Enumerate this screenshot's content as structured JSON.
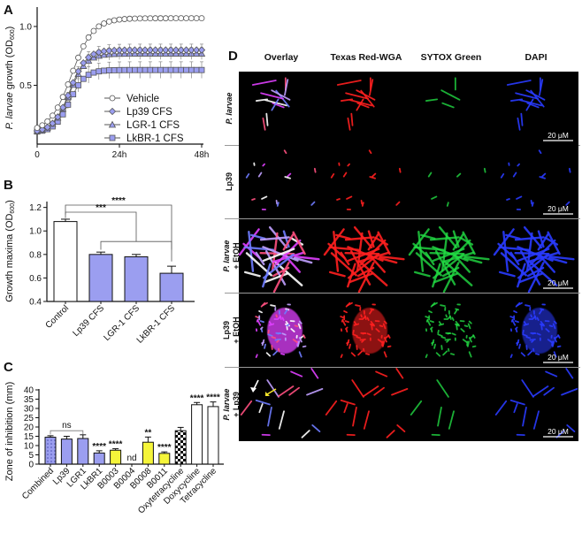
{
  "colors": {
    "purple": "#9b9ef0",
    "purple_dark": "#5d62c8",
    "yellow": "#f5f53a",
    "white": "#ffffff",
    "black": "#000000",
    "red": "#ff2020",
    "green": "#22dd44",
    "blue": "#2a3bff",
    "magenta": "#e040ff",
    "arrow_white": "#ffffff",
    "arrow_yellow": "#f5e52a"
  },
  "chart_data": [
    {
      "panel": "A",
      "type": "line",
      "ylabel": "P. larvae growth (OD600)",
      "ylabel_main": "P. larvae",
      "ylabel_rest": " growth (OD",
      "ylabel_sub": "600",
      "ylabel_end": ")",
      "xlim": [
        0,
        48
      ],
      "ylim": [
        0.0,
        1.15
      ],
      "xticks": [
        {
          "value": 0,
          "label": "0"
        },
        {
          "value": 24,
          "label": "24h"
        },
        {
          "value": 48,
          "label": "48h"
        }
      ],
      "yticks": [
        {
          "value": 0.5,
          "label": "0.5"
        },
        {
          "value": 1.0,
          "label": "1.0"
        }
      ],
      "series": [
        {
          "name": "Vehicle",
          "marker": "circle",
          "plateau": 1.07,
          "mid": 10,
          "k": 0.32,
          "err": 0.02
        },
        {
          "name": "Lp39 CFS",
          "marker": "diamond",
          "plateau": 0.8,
          "mid": 9.5,
          "k": 0.42,
          "err": 0.05
        },
        {
          "name": "LGR-1 CFS",
          "marker": "triangle",
          "plateau": 0.77,
          "mid": 9.5,
          "k": 0.42,
          "err": 0.05
        },
        {
          "name": "LkBR-1 CFS",
          "marker": "square",
          "plateau": 0.63,
          "mid": 9.5,
          "k": 0.45,
          "err": 0.07
        }
      ],
      "start_value": 0.1,
      "legend_position": "bottom-right"
    },
    {
      "panel": "B",
      "type": "bar",
      "ylabel_main": "Growth maxima (OD",
      "ylabel_sub": "600",
      "ylabel_end": ")",
      "ylim": [
        0.4,
        1.25
      ],
      "yticks": [
        0.4,
        0.6,
        0.8,
        1.0,
        1.2
      ],
      "ytick_labels": [
        "0.4",
        "0.6",
        "0.8",
        "1.0",
        "1.2"
      ],
      "categories": [
        "Control",
        "Lp39 CFS",
        "LGR-1 CFS",
        "LkBR-1 CFS"
      ],
      "values": [
        1.08,
        0.8,
        0.78,
        0.64
      ],
      "errors": [
        0.02,
        0.02,
        0.02,
        0.06
      ],
      "fills": [
        "white",
        "purple",
        "purple",
        "purple"
      ],
      "significance": [
        {
          "label": "***",
          "from": 0,
          "to_group": [
            1,
            3
          ],
          "level": 1.16
        },
        {
          "label": "****",
          "from": 0,
          "to": 3,
          "level": 1.22
        }
      ]
    },
    {
      "panel": "C",
      "type": "bar",
      "ylabel": "Zone of inhibition (mm)",
      "ylim": [
        0,
        40
      ],
      "yticks": [
        0,
        5,
        10,
        15,
        20,
        25,
        30,
        35,
        40
      ],
      "ytick_labels": [
        "0",
        "5",
        "10",
        "15",
        "20",
        "25",
        "30",
        "35",
        "40"
      ],
      "categories": [
        "Combined",
        "Lp39",
        "LGR1",
        "LkBR1",
        "B0003",
        "B0004",
        "B0008",
        "B0011",
        "Oxytetracycline",
        "Doxycycline",
        "Tetracycline"
      ],
      "values": [
        14.5,
        13.5,
        13.8,
        6.0,
        7.5,
        0,
        11.8,
        5.8,
        18.0,
        32.0,
        31.0
      ],
      "errors": [
        0.8,
        1.5,
        2.0,
        1.2,
        0.8,
        0,
        2.8,
        0.8,
        1.8,
        1.2,
        2.5
      ],
      "fills": [
        "purple_dot",
        "purple",
        "purple",
        "purple",
        "yellow",
        "yellow",
        "yellow",
        "yellow",
        "checker",
        "white",
        "white"
      ],
      "labels_above": [
        "",
        "",
        "",
        "****",
        "****",
        "nd",
        "**",
        "****",
        "",
        "****",
        "****"
      ],
      "ns_bracket": {
        "label": "ns",
        "from": 0,
        "to": 2,
        "level": 18.0
      }
    }
  ],
  "panel_labels": [
    "A",
    "B",
    "C",
    "D"
  ],
  "microscopy": {
    "columns": [
      "Overlay",
      "Texas Red-WGA",
      "SYTOX Green",
      "DAPI"
    ],
    "rows": [
      {
        "label_line1": "P. larvae",
        "label_line2": "",
        "italic": true,
        "scale": "20 μM",
        "density": "sparse"
      },
      {
        "label_line1": "Lp39",
        "label_line2": "",
        "italic": false,
        "scale": "20 μM",
        "density": "dots"
      },
      {
        "label_line1": "P. larvae",
        "label_line2": "+ EtOH",
        "italic": true,
        "scale": "20 μM",
        "density": "dense"
      },
      {
        "label_line1": "Lp39",
        "label_line2": "+ EtOH",
        "italic": false,
        "scale": "20 μM",
        "density": "cluster"
      },
      {
        "label_line1": "P. larvae",
        "label_line2": "+ Lp39",
        "italic": true,
        "scale": "20 μM",
        "density": "mixed"
      }
    ]
  }
}
